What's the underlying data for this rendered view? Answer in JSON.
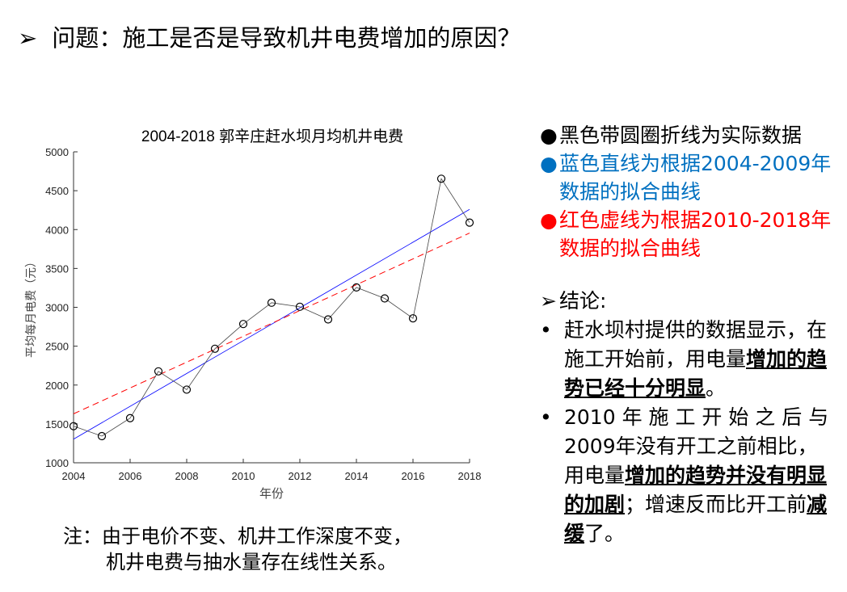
{
  "title": {
    "bullet": "➢",
    "text": "问题：施工是否是导致机井电费增加的原因？"
  },
  "chart_data": {
    "type": "line",
    "title": "2004-2018 郭辛庄赶水坝月均机井电费",
    "xlabel": "年份",
    "ylabel": "平均每月电费（元）",
    "xlim": [
      2004,
      2018
    ],
    "ylim": [
      1000,
      5000
    ],
    "xticks": [
      2004,
      2006,
      2008,
      2010,
      2012,
      2014,
      2016,
      2018
    ],
    "yticks": [
      1000,
      1500,
      2000,
      2500,
      3000,
      3500,
      4000,
      4500,
      5000
    ],
    "grid": false,
    "series": [
      {
        "style": "black line with circle markers",
        "color": "#000000",
        "x": [
          2004,
          2005,
          2006,
          2007,
          2008,
          2009,
          2010,
          2011,
          2012,
          2013,
          2014,
          2015,
          2016,
          2017,
          2018
        ],
        "y": [
          1471,
          1343,
          1574,
          2176,
          1941,
          2467,
          2785,
          3059,
          3007,
          2844,
          3256,
          3114,
          2858,
          4654,
          4090
        ]
      },
      {
        "style": "solid",
        "color": "#0000ff",
        "x": [
          2004,
          2018
        ],
        "y": [
          1304,
          4260
        ]
      },
      {
        "style": "dashed",
        "color": "#ff0000",
        "x": [
          2004,
          2018
        ],
        "y": [
          1630,
          3955
        ]
      }
    ]
  },
  "legend": [
    {
      "bullet": "●",
      "text": "黑色带圆圈折线为实际数据",
      "color": "#000000"
    },
    {
      "bullet": "●",
      "text": "蓝色直线为根据2004-2009年数据的拟合曲线",
      "color": "#0070c0"
    },
    {
      "bullet": "●",
      "text": "红色虚线为根据2010-2018年数据的拟合曲线",
      "color": "#ff0000"
    }
  ],
  "conclusion": {
    "head_bullet": "➢",
    "head": "结论:",
    "items": [
      {
        "bullet": "•",
        "segments": [
          {
            "text": "赶水坝村提供的数据显示，在施工开始前，用电量",
            "bold": false
          },
          {
            "text": "增加的趋势已经十分明显",
            "bold": true
          },
          {
            "text": "。",
            "bold": false
          }
        ]
      },
      {
        "bullet": "•",
        "segments": [
          {
            "text": "2010 年 施 工 开 始 之 后 与 2009年没有开工之前相比，用电量",
            "bold": false
          },
          {
            "text": "增加的趋势并没有明显的加剧",
            "bold": true
          },
          {
            "text": "；增速反而比开工前",
            "bold": false
          },
          {
            "text": "减缓",
            "bold": true
          },
          {
            "text": "了。",
            "bold": false
          }
        ]
      }
    ]
  },
  "note": {
    "line1": "注：由于电价不变、机井工作深度不变，",
    "line2": "机井电费与抽水量存在线性关系。"
  }
}
